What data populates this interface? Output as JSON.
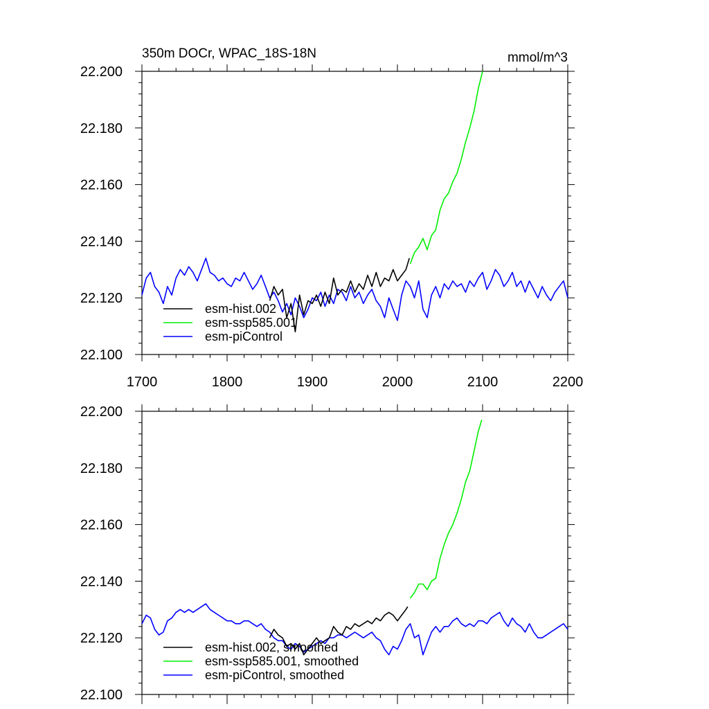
{
  "chart_data": [
    {
      "type": "line",
      "title": "350m DOCr, WPAC_18S-18N",
      "units": "mmol/m^3",
      "xlim": [
        1700,
        2200
      ],
      "ylim": [
        22.1,
        22.2
      ],
      "xticks": [
        "1700",
        "1800",
        "1900",
        "2000",
        "2100",
        "2200"
      ],
      "yticks": [
        "22.100",
        "22.120",
        "22.140",
        "22.160",
        "22.180",
        "22.200"
      ],
      "legend_position": "lower-left",
      "series": [
        {
          "name": "esm-hist.002",
          "color": "#000000",
          "x": [
            1850,
            1855,
            1860,
            1865,
            1870,
            1875,
            1880,
            1885,
            1890,
            1895,
            1900,
            1905,
            1910,
            1915,
            1920,
            1925,
            1930,
            1935,
            1940,
            1945,
            1950,
            1955,
            1960,
            1965,
            1970,
            1975,
            1980,
            1985,
            1990,
            1995,
            2000,
            2005,
            2010,
            2014
          ],
          "y": [
            22.119,
            22.124,
            22.121,
            22.123,
            22.113,
            22.118,
            22.108,
            22.121,
            22.114,
            22.119,
            22.118,
            22.121,
            22.117,
            22.122,
            22.118,
            22.127,
            22.121,
            22.123,
            22.122,
            22.126,
            22.122,
            22.125,
            22.123,
            22.128,
            22.124,
            22.129,
            22.124,
            22.127,
            22.126,
            22.13,
            22.126,
            22.128,
            22.13,
            22.134
          ]
        },
        {
          "name": "esm-ssp585.001",
          "color": "#00ee00",
          "x": [
            2015,
            2020,
            2025,
            2030,
            2035,
            2040,
            2045,
            2050,
            2055,
            2060,
            2065,
            2070,
            2075,
            2080,
            2085,
            2090,
            2095,
            2100
          ],
          "y": [
            22.132,
            22.136,
            22.138,
            22.141,
            22.137,
            22.142,
            22.144,
            22.151,
            22.155,
            22.157,
            22.161,
            22.164,
            22.169,
            22.175,
            22.18,
            22.186,
            22.194,
            22.2
          ]
        },
        {
          "name": "esm-piControl",
          "color": "#0000ff",
          "x": [
            1700,
            1705,
            1710,
            1715,
            1720,
            1725,
            1730,
            1735,
            1740,
            1745,
            1750,
            1755,
            1760,
            1765,
            1770,
            1775,
            1780,
            1785,
            1790,
            1795,
            1800,
            1805,
            1810,
            1815,
            1820,
            1825,
            1830,
            1835,
            1840,
            1845,
            1850,
            1855,
            1860,
            1865,
            1870,
            1875,
            1880,
            1885,
            1890,
            1895,
            1900,
            1905,
            1910,
            1915,
            1920,
            1925,
            1930,
            1935,
            1940,
            1945,
            1950,
            1955,
            1960,
            1965,
            1970,
            1975,
            1980,
            1985,
            1990,
            1995,
            2000,
            2005,
            2010,
            2015,
            2020,
            2025,
            2030,
            2035,
            2040,
            2045,
            2050,
            2055,
            2060,
            2065,
            2070,
            2075,
            2080,
            2085,
            2090,
            2095,
            2100,
            2105,
            2110,
            2115,
            2120,
            2125,
            2130,
            2135,
            2140,
            2145,
            2150,
            2155,
            2160,
            2165,
            2170,
            2175,
            2180,
            2185,
            2190,
            2195,
            2200
          ],
          "y": [
            22.121,
            22.127,
            22.129,
            22.124,
            22.122,
            22.118,
            22.124,
            22.121,
            22.127,
            22.13,
            22.128,
            22.131,
            22.129,
            22.126,
            22.13,
            22.134,
            22.129,
            22.128,
            22.126,
            22.127,
            22.125,
            22.124,
            22.127,
            22.126,
            22.129,
            22.126,
            22.123,
            22.125,
            22.128,
            22.124,
            22.12,
            22.122,
            22.119,
            22.115,
            22.118,
            22.114,
            22.12,
            22.117,
            22.113,
            22.116,
            22.12,
            22.119,
            22.122,
            22.117,
            22.121,
            22.118,
            22.123,
            22.122,
            22.119,
            22.124,
            22.12,
            22.122,
            22.118,
            22.121,
            22.123,
            22.119,
            22.117,
            22.113,
            22.12,
            22.116,
            22.112,
            22.121,
            22.126,
            22.124,
            22.12,
            22.126,
            22.116,
            22.113,
            22.121,
            22.124,
            22.12,
            22.125,
            22.123,
            22.126,
            22.124,
            22.125,
            22.122,
            22.126,
            22.124,
            22.127,
            22.129,
            22.123,
            22.126,
            22.13,
            22.128,
            22.124,
            22.126,
            22.129,
            22.124,
            22.126,
            22.122,
            22.126,
            22.123,
            22.12,
            22.124,
            22.121,
            22.119,
            22.122,
            22.124,
            22.126,
            22.12
          ]
        }
      ]
    },
    {
      "type": "line",
      "title": "",
      "units": "",
      "xlim": [
        1700,
        2200
      ],
      "ylim": [
        22.1,
        22.2
      ],
      "xticks": [],
      "yticks": [
        "22.100",
        "22.120",
        "22.140",
        "22.160",
        "22.180",
        "22.200"
      ],
      "legend_position": "lower-left",
      "series": [
        {
          "name": "esm-hist.002, smoothed",
          "color": "#000000",
          "x": [
            1850,
            1855,
            1860,
            1865,
            1870,
            1875,
            1880,
            1885,
            1890,
            1895,
            1900,
            1905,
            1910,
            1915,
            1920,
            1925,
            1930,
            1935,
            1940,
            1945,
            1950,
            1955,
            1960,
            1965,
            1970,
            1975,
            1980,
            1985,
            1990,
            1995,
            2000,
            2005,
            2010,
            2012
          ],
          "y": [
            22.12,
            22.123,
            22.121,
            22.12,
            22.117,
            22.118,
            22.116,
            22.118,
            22.114,
            22.116,
            22.118,
            22.12,
            22.118,
            22.119,
            22.12,
            22.124,
            22.122,
            22.121,
            22.124,
            22.123,
            22.125,
            22.124,
            22.125,
            22.126,
            22.125,
            22.127,
            22.126,
            22.128,
            22.129,
            22.128,
            22.126,
            22.128,
            22.13,
            22.131
          ]
        },
        {
          "name": "esm-ssp585.001, smoothed",
          "color": "#00ee00",
          "x": [
            2015,
            2020,
            2025,
            2030,
            2035,
            2040,
            2045,
            2050,
            2055,
            2060,
            2065,
            2070,
            2075,
            2080,
            2085,
            2090,
            2095,
            2099
          ],
          "y": [
            22.134,
            22.136,
            22.139,
            22.139,
            22.137,
            22.14,
            22.141,
            22.148,
            22.153,
            22.157,
            22.16,
            22.164,
            22.169,
            22.175,
            22.179,
            22.186,
            22.193,
            22.197
          ]
        },
        {
          "name": "esm-piControl, smoothed",
          "color": "#0000ff",
          "x": [
            1700,
            1705,
            1710,
            1715,
            1720,
            1725,
            1730,
            1735,
            1740,
            1745,
            1750,
            1755,
            1760,
            1765,
            1770,
            1775,
            1780,
            1785,
            1790,
            1795,
            1800,
            1805,
            1810,
            1815,
            1820,
            1825,
            1830,
            1835,
            1840,
            1845,
            1850,
            1855,
            1860,
            1865,
            1870,
            1875,
            1880,
            1885,
            1890,
            1895,
            1900,
            1905,
            1910,
            1915,
            1920,
            1925,
            1930,
            1935,
            1940,
            1945,
            1950,
            1955,
            1960,
            1965,
            1970,
            1975,
            1980,
            1985,
            1990,
            1995,
            2000,
            2005,
            2010,
            2015,
            2020,
            2025,
            2030,
            2035,
            2040,
            2045,
            2050,
            2055,
            2060,
            2065,
            2070,
            2075,
            2080,
            2085,
            2090,
            2095,
            2100,
            2105,
            2110,
            2115,
            2120,
            2125,
            2130,
            2135,
            2140,
            2145,
            2150,
            2155,
            2160,
            2165,
            2170,
            2175,
            2180,
            2185,
            2190,
            2195,
            2200
          ],
          "y": [
            22.125,
            22.128,
            22.127,
            22.123,
            22.121,
            22.122,
            22.126,
            22.127,
            22.129,
            22.13,
            22.129,
            22.13,
            22.129,
            22.13,
            22.131,
            22.132,
            22.13,
            22.129,
            22.128,
            22.127,
            22.126,
            22.126,
            22.125,
            22.125,
            22.126,
            22.126,
            22.125,
            22.124,
            22.125,
            22.123,
            22.122,
            22.12,
            22.119,
            22.119,
            22.117,
            22.116,
            22.118,
            22.117,
            22.115,
            22.116,
            22.117,
            22.118,
            22.119,
            22.118,
            22.12,
            22.12,
            22.121,
            22.121,
            22.12,
            22.121,
            22.122,
            22.121,
            22.12,
            22.121,
            22.122,
            22.12,
            22.119,
            22.116,
            22.114,
            22.117,
            22.116,
            22.119,
            22.123,
            22.125,
            22.12,
            22.121,
            22.114,
            22.118,
            22.122,
            22.124,
            22.122,
            22.124,
            22.124,
            22.126,
            22.127,
            22.125,
            22.124,
            22.125,
            22.124,
            22.126,
            22.126,
            22.125,
            22.127,
            22.128,
            22.129,
            22.126,
            22.124,
            22.127,
            22.125,
            22.124,
            22.122,
            22.125,
            22.122,
            22.12,
            22.12,
            22.121,
            22.122,
            22.123,
            22.124,
            22.125,
            22.123
          ]
        }
      ]
    }
  ]
}
